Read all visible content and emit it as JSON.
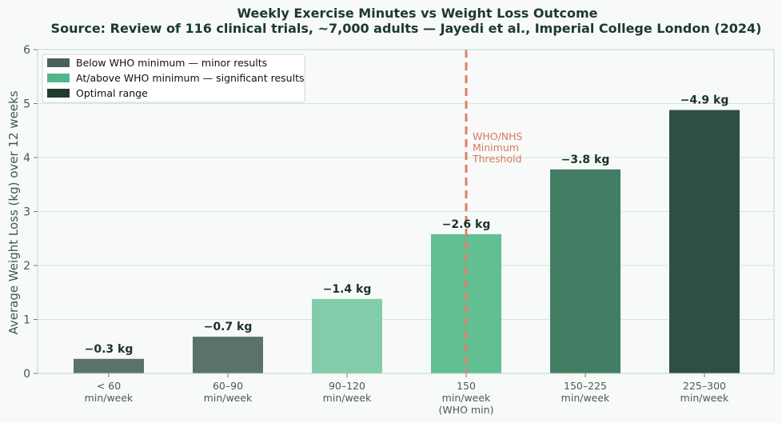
{
  "chart_data": {
    "type": "bar",
    "title": "Weekly Exercise Minutes vs Weight Loss Outcome",
    "subtitle": "Source: Review of 116 clinical trials, ~7,000 adults — Jayedi et al., Imperial College London (2024)",
    "xlabel": "",
    "ylabel": "Average Weight Loss (kg) over 12 weeks",
    "ylim": [
      0,
      6
    ],
    "yticks": [
      "0",
      "1",
      "2",
      "3",
      "4",
      "5",
      "6"
    ],
    "grid": true,
    "legend_position": "top-left",
    "categories": [
      [
        "< 60",
        "min/week"
      ],
      [
        "60–90",
        "min/week"
      ],
      [
        "90–120",
        "min/week"
      ],
      [
        "150",
        "min/week",
        "(WHO min)"
      ],
      [
        "150–225",
        "min/week"
      ],
      [
        "225–300",
        "min/week"
      ]
    ],
    "values": [
      0.27,
      0.68,
      1.38,
      2.58,
      3.78,
      4.88
    ],
    "data_labels": [
      "−0.3 kg",
      "−0.7 kg",
      "−1.4 kg",
      "−2.6 kg",
      "−3.8 kg",
      "−4.9 kg"
    ],
    "bar_colors": [
      "#5b716b",
      "#5b716b",
      "#82ccaa",
      "#62bf92",
      "#427d64",
      "#2e4f41"
    ],
    "legend": [
      {
        "label": "Below WHO minimum — minor results",
        "color": "#4a605a"
      },
      {
        "label": "At/above WHO minimum — significant results",
        "color": "#52b788"
      },
      {
        "label": "Optimal range",
        "color": "#1f3b30"
      }
    ],
    "threshold": {
      "category_index": 3,
      "label": [
        "WHO/NHS",
        "Minimum",
        "Threshold"
      ],
      "color": "#dd8068"
    },
    "colors": {
      "grid": "#cfe8da",
      "axis": "#bcd8c8",
      "background": "#f7faf8"
    }
  }
}
